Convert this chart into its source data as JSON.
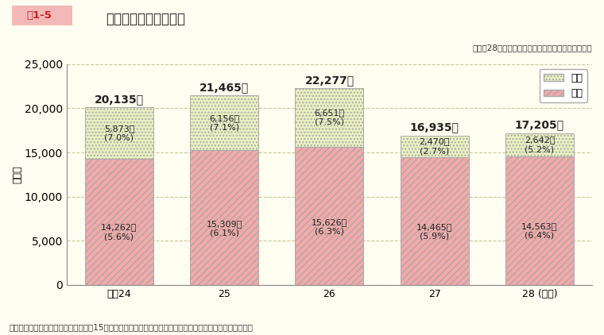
{
  "title": "最近５年間の離職者数",
  "title_prefix": "図1-5",
  "subtitle": "（平成28年度一般職の国家公務員の任用状況調査）",
  "footnote": "（注）（　）内は離職率（前年度１月15日現在の在職者数に対する当該年度中の離職者数の割合）を示す。",
  "ylabel": "（人）",
  "xlabel_last": "（年度）",
  "categories": [
    "平成24",
    "25",
    "26",
    "27",
    "28"
  ],
  "male_values": [
    14262,
    15309,
    15626,
    14465,
    14563
  ],
  "female_values": [
    5873,
    6156,
    6651,
    2470,
    2642
  ],
  "total_labels": [
    "20,135人",
    "21,465人",
    "22,277人",
    "16,935人",
    "17,205人"
  ],
  "male_labels": [
    "14,262人\n(5.6%)",
    "15,309人\n(6.1%)",
    "15,626人\n(6.3%)",
    "14,465人\n(5.9%)",
    "14,563人\n(6.4%)"
  ],
  "female_labels": [
    "5,873人\n(7.0%)",
    "6,156人\n(7.1%)",
    "6,651人\n(7.5%)",
    "2,470人\n(2.7%)",
    "2,642人\n(5.2%)"
  ],
  "ylim": [
    0,
    25000
  ],
  "yticks": [
    0,
    5000,
    10000,
    15000,
    20000,
    25000
  ],
  "bar_width": 0.65,
  "male_color": "#f5a8a8",
  "male_hatch": "////",
  "female_color": "#e8f0c0",
  "female_hatch": "....",
  "background_color": "#fffef0",
  "plot_bg_color": "#fffef0",
  "legend_female": "女性",
  "legend_male": "男性",
  "grid_color": "#c8c8a0",
  "title_box_bg": "#f5b8b8",
  "title_box_text_color": "#cc2222",
  "title_color": "#222222",
  "label_color": "#222222",
  "text_fontsize": 8,
  "total_fontsize": 10
}
